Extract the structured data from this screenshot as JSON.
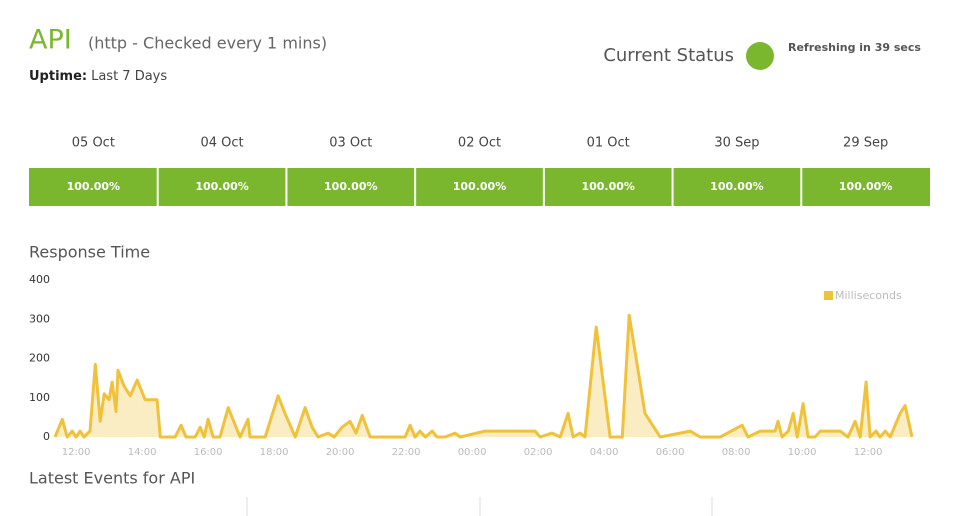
{
  "header": {
    "title": "API",
    "subtitle": "(http - Checked every 1 mins)",
    "uptime_label": "Uptime:",
    "uptime_value": "Last 7 Days",
    "status_label": "Current Status",
    "refresh": "Refreshing in 39 secs"
  },
  "days": [
    {
      "date": "05 Oct",
      "uptime": "100.00%"
    },
    {
      "date": "04 Oct",
      "uptime": "100.00%"
    },
    {
      "date": "03 Oct",
      "uptime": "100.00%"
    },
    {
      "date": "02 Oct",
      "uptime": "100.00%"
    },
    {
      "date": "01 Oct",
      "uptime": "100.00%"
    },
    {
      "date": "30 Sep",
      "uptime": "100.00%"
    },
    {
      "date": "29 Sep",
      "uptime": "100.00%"
    }
  ],
  "sections": {
    "response_time": "Response Time",
    "events": "Latest Events for API"
  },
  "chart_data": {
    "type": "area",
    "legend": "top-right",
    "x": [
      11.36,
      11.58,
      11.73,
      11.88,
      12,
      12.12,
      12.24,
      12.42,
      12.58,
      12.73,
      12.85,
      13.0,
      13.09,
      13.21,
      13.27,
      13.45,
      13.64,
      13.85,
      14.09,
      14.24,
      14.45,
      14.55,
      15.0,
      15.18,
      15.33,
      15.61,
      15.76,
      15.88,
      16.0,
      16.15,
      16.36,
      16.61,
      16.82,
      16.97,
      17.21,
      17.27,
      17.73,
      18.12,
      18.33,
      18.64,
      18.94,
      19.15,
      19.33,
      19.64,
      19.82,
      20.06,
      20.3,
      20.48,
      20.67,
      20.91,
      21.97,
      22.12,
      22.27,
      22.42,
      22.58,
      22.79,
      22.94,
      23.18,
      23.48,
      23.64,
      24.39,
      25.91,
      26.06,
      26.42,
      26.67,
      26.91,
      27.06,
      27.27,
      27.42,
      27.76,
      28.18,
      28.55,
      28.76,
      29.24,
      29.7,
      30.61,
      30.91,
      31.52,
      32.18,
      32.36,
      32.73,
      33.18,
      33.27,
      33.39,
      33.58,
      33.73,
      33.85,
      34.03,
      34.18,
      34.39,
      34.55,
      35.15,
      35.39,
      35.61,
      35.76,
      35.94,
      36.06,
      36.24,
      36.36,
      36.52,
      36.67,
      36.97,
      37.12,
      37.33
    ],
    "series": [
      {
        "name": "Milliseconds",
        "color": "#f0c23b",
        "values": [
          0,
          45,
          0,
          15,
          0,
          15,
          0,
          15,
          185,
          40,
          110,
          95,
          140,
          65,
          170,
          130,
          105,
          145,
          95,
          95,
          95,
          0,
          0,
          30,
          0,
          0,
          25,
          0,
          45,
          0,
          0,
          75,
          30,
          0,
          45,
          0,
          0,
          105,
          60,
          0,
          75,
          25,
          0,
          10,
          0,
          25,
          40,
          10,
          55,
          0,
          0,
          30,
          0,
          15,
          0,
          15,
          0,
          0,
          10,
          0,
          15,
          15,
          0,
          10,
          0,
          60,
          0,
          10,
          0,
          280,
          0,
          0,
          310,
          60,
          0,
          15,
          0,
          0,
          30,
          0,
          15,
          15,
          40,
          0,
          15,
          60,
          0,
          85,
          0,
          0,
          15,
          15,
          0,
          40,
          0,
          140,
          0,
          15,
          0,
          15,
          0,
          60,
          80,
          0
        ]
      }
    ],
    "xlim": [
      11.36,
      37.33
    ],
    "xticks": [
      {
        "value": 12,
        "label": "12:00"
      },
      {
        "value": 14,
        "label": "14:00"
      },
      {
        "value": 16,
        "label": "16:00"
      },
      {
        "value": 18,
        "label": "18:00"
      },
      {
        "value": 20,
        "label": "20:00"
      },
      {
        "value": 22,
        "label": "22:00"
      },
      {
        "value": 24,
        "label": "00:00"
      },
      {
        "value": 26,
        "label": "02:00"
      },
      {
        "value": 28,
        "label": "04:00"
      },
      {
        "value": 30,
        "label": "06:00"
      },
      {
        "value": 32,
        "label": "08:00"
      },
      {
        "value": 34,
        "label": "10:00"
      },
      {
        "value": 36,
        "label": "12:00"
      }
    ],
    "ylim": [
      0,
      400
    ],
    "yticks": [
      0,
      100,
      200,
      300,
      400
    ]
  }
}
